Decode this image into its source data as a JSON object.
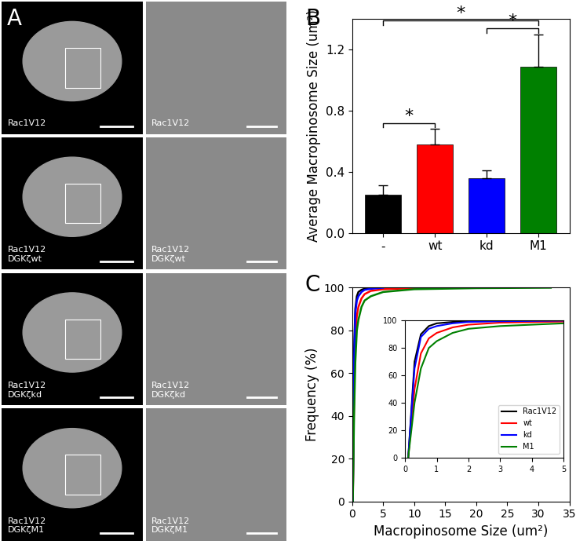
{
  "image_panels": {
    "panel_label": "A",
    "rows": [
      {
        "label": "Rac1V12"
      },
      {
        "label": "Rac1V12\nDGKζwt"
      },
      {
        "label": "Rac1V12\nDGKζkd"
      },
      {
        "label": "Rac1V12\nDGKζM1"
      }
    ]
  },
  "chart_data": [
    {
      "type": "bar",
      "panel_label": "B",
      "y_label": "Average Macropinosome Size (um²)",
      "categories": [
        "-",
        "wt",
        "kd",
        "M1"
      ],
      "values": [
        0.25,
        0.58,
        0.36,
        1.09
      ],
      "errors": [
        0.06,
        0.1,
        0.05,
        0.21
      ],
      "colors": [
        "#000000",
        "#ff0000",
        "#0000ff",
        "#008000"
      ],
      "ylim": [
        0,
        1.4
      ],
      "yticks": [
        {
          "value": 0.0,
          "label": "0.0"
        },
        {
          "value": 0.4,
          "label": "0.4"
        },
        {
          "value": 0.8,
          "label": "0.8"
        },
        {
          "value": 1.2,
          "label": "1.2"
        }
      ],
      "significance": [
        {
          "from": "-",
          "to": "wt",
          "label": "*"
        },
        {
          "from": "kd",
          "to": "M1",
          "label": "*"
        },
        {
          "from": "-",
          "to": "M1",
          "label": "*"
        }
      ]
    },
    {
      "type": "line",
      "panel_label": "C",
      "x_label": "Macropinosome Size (um²)",
      "y_label": "Frequency (%)",
      "xlim": [
        0,
        35
      ],
      "xticks": [
        0,
        5,
        10,
        15,
        20,
        25,
        30,
        35
      ],
      "ylim": [
        0,
        100
      ],
      "yticks": [
        0,
        20,
        40,
        60,
        80,
        100
      ],
      "legend": "lower right",
      "series": [
        {
          "name": "Rac1V12",
          "color": "#000000",
          "x": [
            0.1,
            0.3,
            0.5,
            0.75,
            1,
            1.5,
            2,
            3,
            4.3
          ],
          "values": [
            0,
            70,
            90,
            96,
            98,
            99,
            99.5,
            99.8,
            100
          ]
        },
        {
          "name": "wt",
          "color": "#ff0000",
          "x": [
            0.1,
            0.3,
            0.5,
            0.75,
            1,
            1.5,
            2,
            3,
            5,
            10,
            15
          ],
          "values": [
            0,
            50,
            76,
            87,
            91,
            95,
            97,
            98.5,
            99.3,
            99.8,
            100
          ]
        },
        {
          "name": "kd",
          "color": "#0000ff",
          "x": [
            0.1,
            0.3,
            0.5,
            0.75,
            1,
            1.5,
            2,
            3,
            5
          ],
          "values": [
            0,
            65,
            88,
            94,
            96,
            98,
            99,
            99.5,
            100
          ]
        },
        {
          "name": "M1",
          "color": "#008000",
          "x": [
            0.1,
            0.3,
            0.5,
            0.75,
            1,
            1.5,
            2,
            3,
            5,
            10,
            20,
            32
          ],
          "values": [
            0,
            40,
            65,
            80,
            85,
            91,
            94,
            96,
            98,
            99.3,
            99.8,
            100
          ]
        }
      ],
      "inset": {
        "xlim": [
          0,
          5
        ],
        "xticks": [
          0,
          1,
          2,
          3,
          4,
          5
        ],
        "ylim": [
          0,
          100
        ],
        "yticks": [
          0,
          20,
          40,
          60,
          80,
          100
        ]
      }
    }
  ]
}
